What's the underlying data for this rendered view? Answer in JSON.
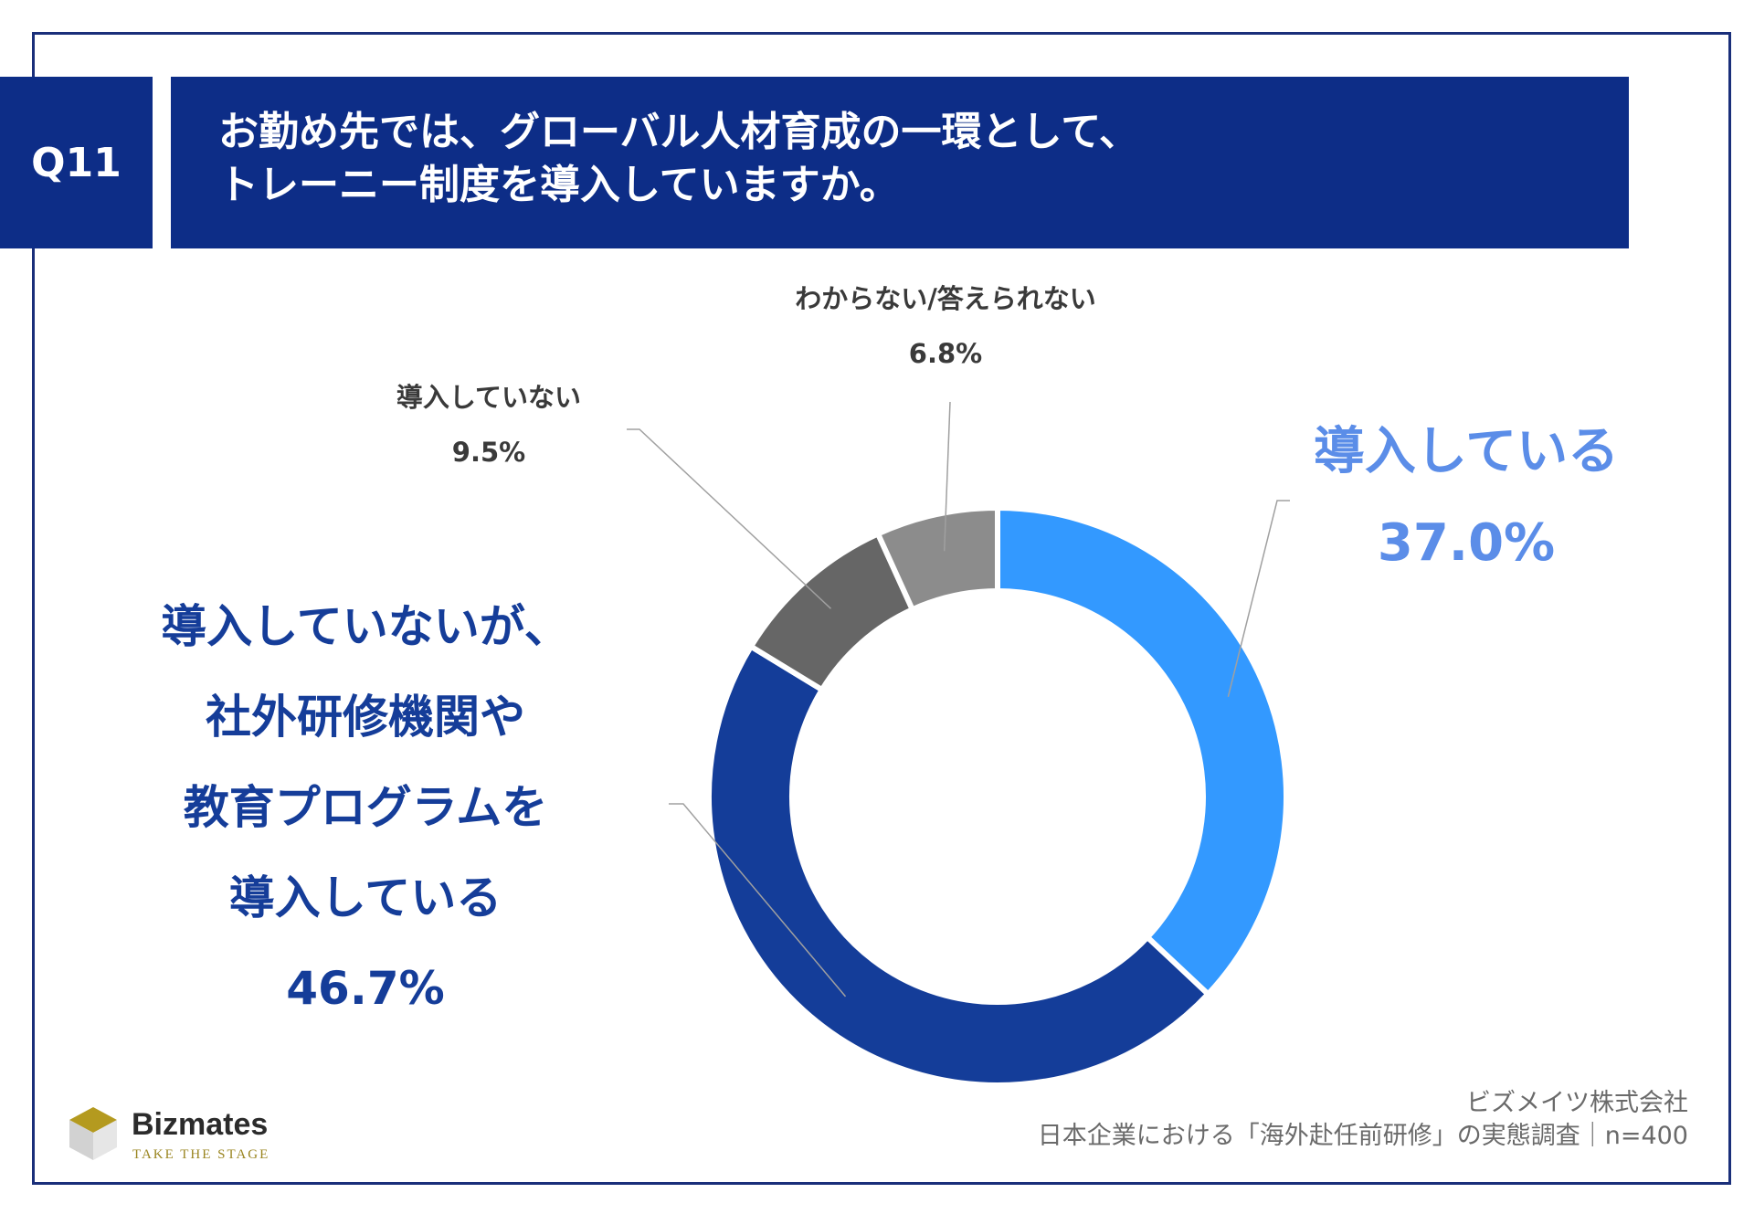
{
  "question": {
    "number": "Q11",
    "title_lines": [
      "お勤め先では、グローバル人材育成の一環として、",
      "トレーニー制度を導入していますか。"
    ]
  },
  "chart_data": {
    "type": "pie",
    "donut": true,
    "start": "top, clockwise",
    "categories": [
      "導入している",
      "導入していないが、社外研修機関や教育プログラムを導入している",
      "導入していない",
      "わからない/答えられない"
    ],
    "values": [
      37.0,
      46.7,
      9.5,
      6.8
    ],
    "value_labels": [
      "37.0%",
      "46.7%",
      "9.5%",
      "6.8%"
    ],
    "colors": [
      "#3399ff",
      "#143d99",
      "#666666",
      "#8c8c8c"
    ],
    "label_lines": [
      [
        "導入している",
        "37.0%"
      ],
      [
        "導入していないが、",
        "社外研修機関や",
        "教育プログラムを",
        "導入している",
        "46.7%"
      ],
      [
        "導入していない",
        "9.5%"
      ],
      [
        "わからない/答えられない",
        "6.8%"
      ]
    ]
  },
  "footer": {
    "company": "ビズメイツ株式会社",
    "survey": "日本企業における「海外赴任前研修」の実態調査｜n=400"
  },
  "logo": {
    "name": "Bizmates",
    "tagline": "TAKE THE STAGE"
  }
}
